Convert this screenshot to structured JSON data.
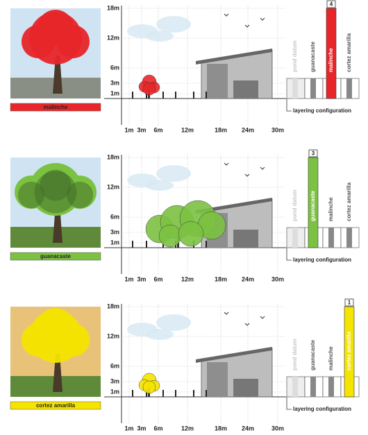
{
  "axes": {
    "y_labels": [
      "18m",
      "12m",
      "6m",
      "3m",
      "1m"
    ],
    "x_labels": [
      "1m",
      "3m",
      "6m",
      "12m",
      "18m",
      "24m",
      "30m"
    ]
  },
  "layering_title": "layering configuration",
  "layers": [
    "pond datum",
    "guanacaste",
    "malinche",
    "cortez amarilla"
  ],
  "panels": [
    {
      "species": "malinche",
      "color": "#e8262a",
      "badge": "4",
      "highlight": 2
    },
    {
      "species": "guanacaste",
      "color": "#7cc242",
      "badge": "3",
      "highlight": 1
    },
    {
      "species": "cortez amarilla",
      "color": "#f5e400",
      "badge": "1",
      "highlight": 3
    }
  ]
}
